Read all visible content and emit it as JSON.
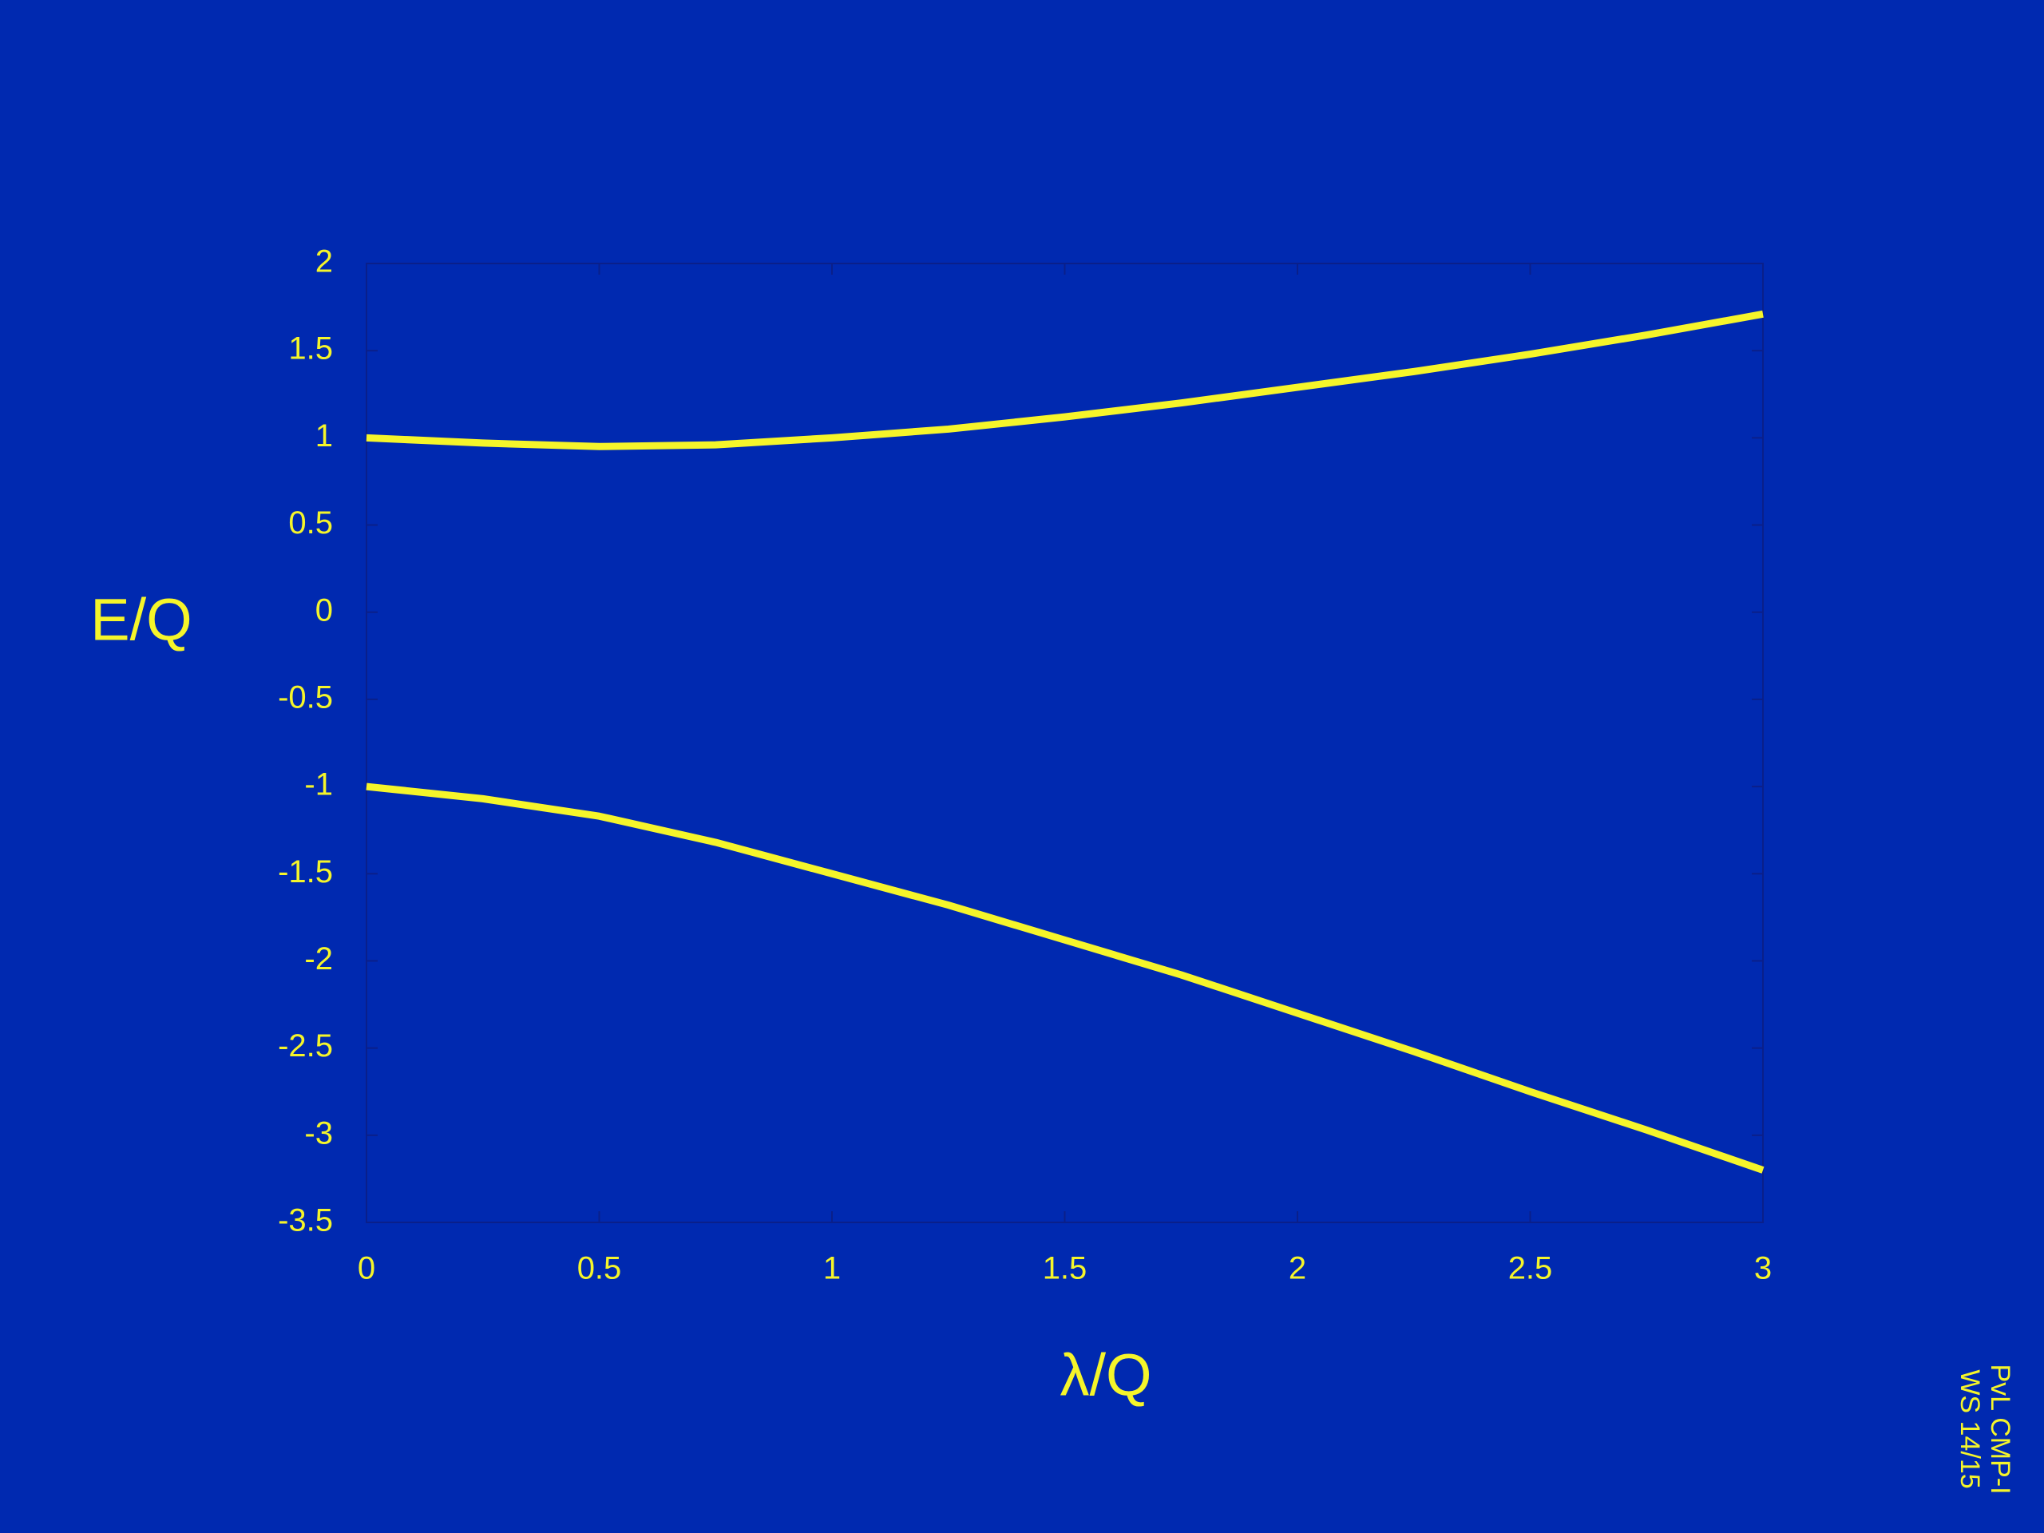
{
  "chart_data": {
    "type": "line",
    "xlabel": "λ/Q",
    "ylabel": "E/Q",
    "footnote": [
      "PvL CMP-I",
      "WS 14/15"
    ],
    "x": [
      0,
      0.25,
      0.5,
      0.75,
      1,
      1.25,
      1.5,
      1.75,
      2,
      2.25,
      2.5,
      2.75,
      3
    ],
    "series": [
      {
        "color": "#f5f52a",
        "values": [
          1.0,
          0.97,
          0.95,
          0.96,
          1.0,
          1.05,
          1.12,
          1.2,
          1.29,
          1.38,
          1.48,
          1.59,
          1.71
        ]
      },
      {
        "color": "#f5f52a",
        "values": [
          -1.0,
          -1.07,
          -1.17,
          -1.32,
          -1.5,
          -1.68,
          -1.88,
          -2.08,
          -2.3,
          -2.52,
          -2.75,
          -2.97,
          -3.2
        ]
      }
    ],
    "xlim": [
      0,
      3
    ],
    "xticks": [
      0,
      0.5,
      1,
      1.5,
      2,
      2.5,
      3
    ],
    "ylim": [
      -3.5,
      2
    ],
    "yticks": [
      -3.5,
      -3,
      -2.5,
      -2,
      -1.5,
      -1,
      -0.5,
      0,
      0.5,
      1,
      1.5,
      2
    ]
  }
}
